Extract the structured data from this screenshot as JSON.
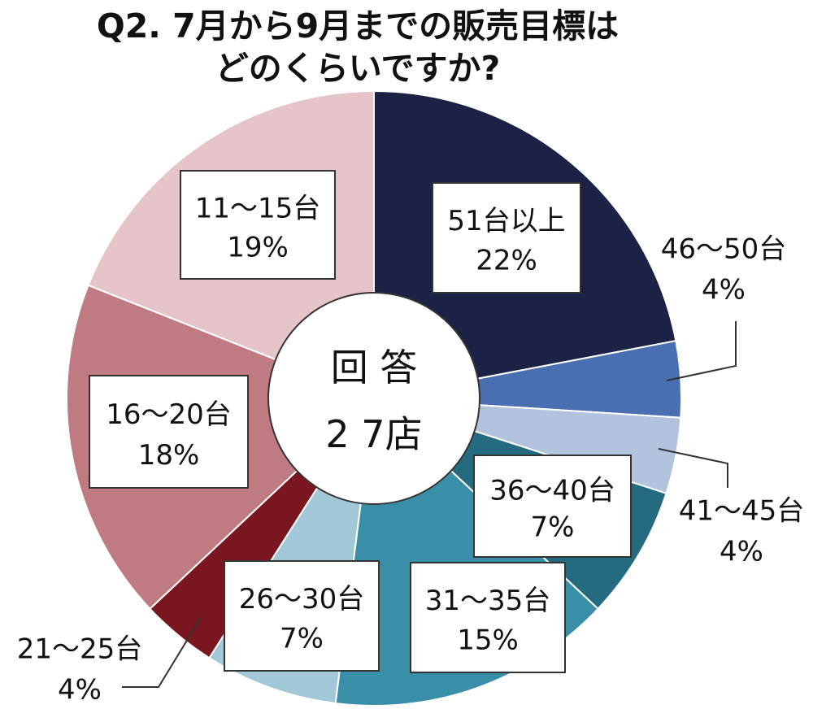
{
  "chart_data": {
    "type": "pie",
    "title_lines": [
      "Q2. 7月から9月までの販売目標は",
      "どのくらいですか?"
    ],
    "center_label": [
      "回 答",
      "2 7店"
    ],
    "slices": [
      {
        "label": "51台以上",
        "value": 22,
        "value_label": "22%",
        "color": "#1c2246"
      },
      {
        "label": "46～50台",
        "value": 4,
        "value_label": "4%",
        "color": "#4a6fb0"
      },
      {
        "label": "41～45台",
        "value": 4,
        "value_label": "4%",
        "color": "#b2c3de"
      },
      {
        "label": "36～40台",
        "value": 7,
        "value_label": "7%",
        "color": "#256b80"
      },
      {
        "label": "31～35台",
        "value": 15,
        "value_label": "15%",
        "color": "#3a8fa8"
      },
      {
        "label": "26～30台",
        "value": 7,
        "value_label": "7%",
        "color": "#a2c7d7"
      },
      {
        "label": "21～25台",
        "value": 4,
        "value_label": "4%",
        "color": "#7a1620"
      },
      {
        "label": "16～20台",
        "value": 18,
        "value_label": "18%",
        "color": "#c07a82"
      },
      {
        "label": "11～15台",
        "value": 19,
        "value_label": "19%",
        "color": "#e6c5ca"
      }
    ]
  }
}
